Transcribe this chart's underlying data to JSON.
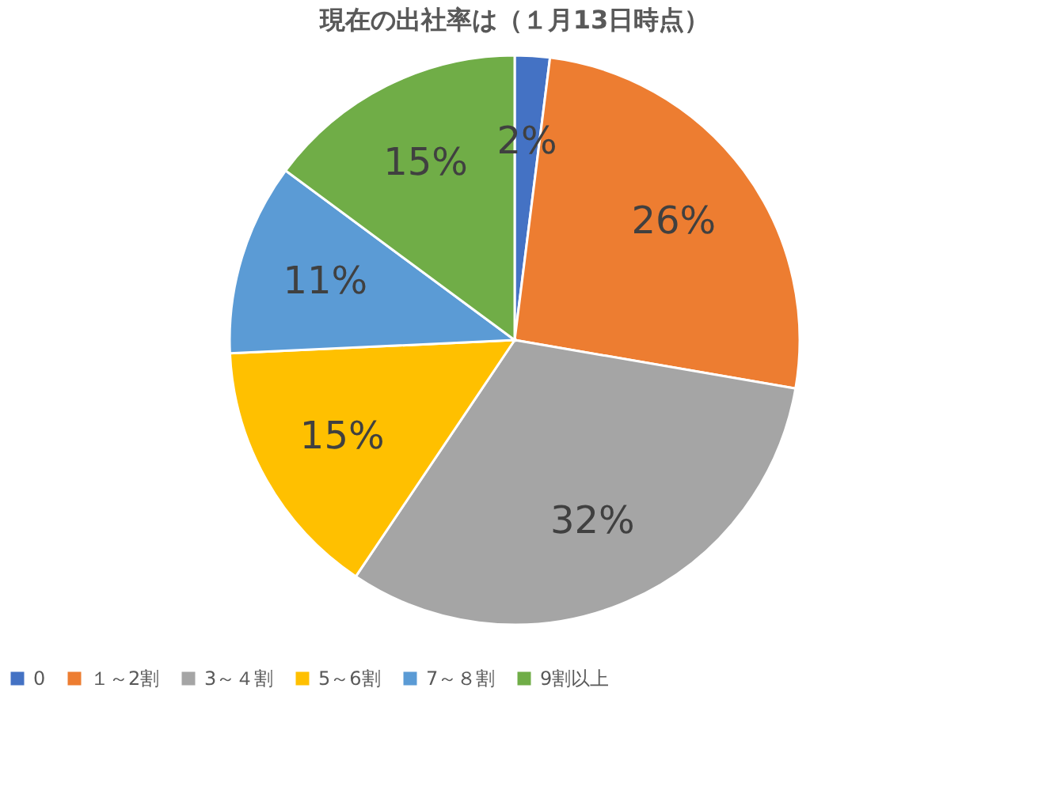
{
  "chart_data": {
    "type": "pie",
    "title": "現在の出社率は（１月13日時点）",
    "categories": [
      "0",
      "１～2割",
      "3～４割",
      "5～6割",
      "7～８割",
      "9割以上"
    ],
    "values": [
      2,
      26,
      32,
      15,
      11,
      15
    ],
    "colors": [
      "#4472c4",
      "#ed7d31",
      "#a5a5a5",
      "#ffc000",
      "#5b9bd5",
      "#70ad47"
    ],
    "value_labels": [
      "2%",
      "26%",
      "32%",
      "15%",
      "11%",
      "15%"
    ],
    "legend": "bottom"
  }
}
